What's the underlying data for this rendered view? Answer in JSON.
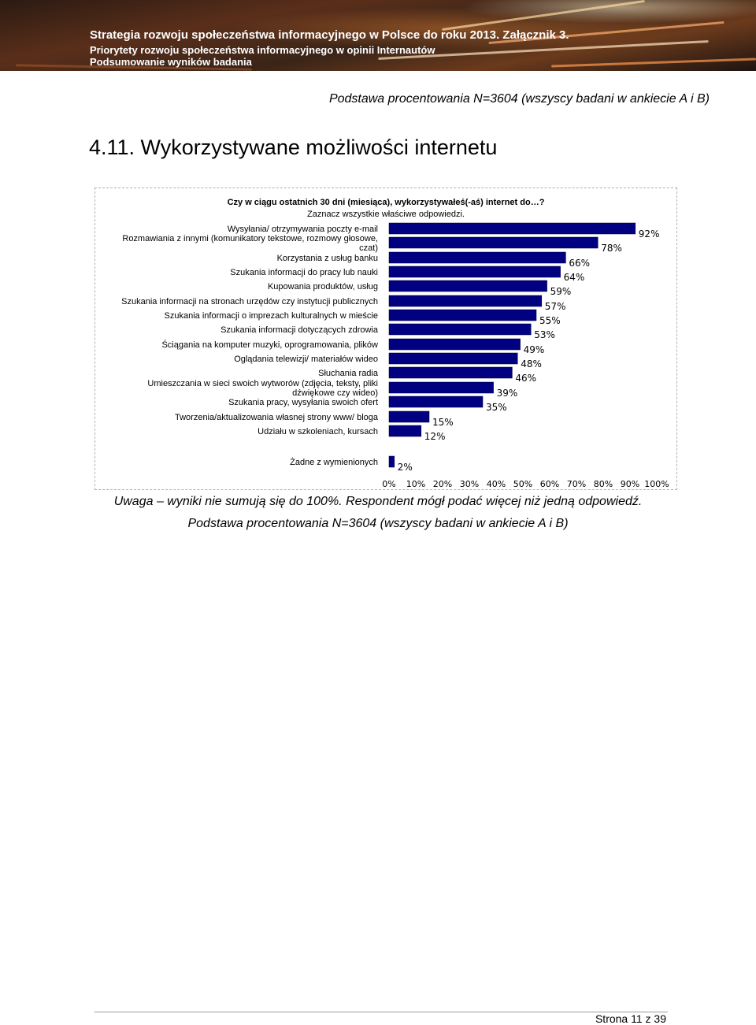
{
  "header": {
    "title": "Strategia rozwoju społeczeństwa informacyjnego w Polsce do roku 2013. Załącznik 3.",
    "subtitle1": "Priorytety rozwoju społeczeństwa informacyjnego w opinii Internautów",
    "subtitle2": "Podsumowanie wyników badania"
  },
  "basis_top": "Podstawa procentowania N=3604 (wszyscy badani w ankiecie A i B)",
  "section_title": "4.11.  Wykorzystywane możliwości internetu",
  "question": {
    "line1": "Czy w ciągu ostatnich 30 dni (miesiąca), wykorzystywałeś(-aś) internet do…?",
    "line2": "Zaznacz wszystkie właściwe odpowiedzi."
  },
  "chart_data": {
    "type": "bar",
    "orientation": "horizontal",
    "bar_color": "#000080",
    "categories": [
      [
        "Wysyłania/ otrzymywania poczty e-mail"
      ],
      [
        "Rozmawiania z innymi (komunikatory tekstowe, rozmowy głosowe,",
        "czat)"
      ],
      [
        "Korzystania z usług banku"
      ],
      [
        "Szukania informacji do pracy lub nauki"
      ],
      [
        "Kupowania produktów, usług"
      ],
      [
        "Szukania informacji na stronach urzędów czy instytucji publicznych"
      ],
      [
        "Szukania informacji o imprezach kulturalnych w mieście"
      ],
      [
        "Szukania informacji dotyczących zdrowia"
      ],
      [
        "Ściągania na komputer muzyki, oprogramowania, plików"
      ],
      [
        "Oglądania telewizji/ materiałów wideo"
      ],
      [
        "Słuchania radia"
      ],
      [
        "Umieszczania w sieci swoich wytworów (zdjęcia, teksty, pliki",
        "dźwiękowe czy wideo)"
      ],
      [
        "Szukania pracy, wysyłania swoich ofert"
      ],
      [
        "Tworzenia/aktualizowania własnej strony www/ bloga"
      ],
      [
        "Udziału w szkoleniach, kursach"
      ],
      [
        "Żadne z wymienionych"
      ]
    ],
    "values": [
      92,
      78,
      66,
      64,
      59,
      57,
      55,
      53,
      49,
      48,
      46,
      39,
      35,
      15,
      12,
      2
    ],
    "value_labels": [
      "92%",
      "78%",
      "66%",
      "64%",
      "59%",
      "57%",
      "55%",
      "53%",
      "49%",
      "48%",
      "46%",
      "39%",
      "35%",
      "15%",
      "12%",
      "2%"
    ],
    "xlim": [
      0,
      100
    ],
    "ticks": [
      0,
      10,
      20,
      30,
      40,
      50,
      60,
      70,
      80,
      90,
      100
    ],
    "tick_labels": [
      "0%",
      "10%",
      "20%",
      "30%",
      "40%",
      "50%",
      "60%",
      "70%",
      "80%",
      "90%",
      "100%"
    ],
    "grid": false,
    "legend": "none"
  },
  "note": "Uwaga – wyniki nie sumują się do 100%. Respondent mógł podać więcej niż jedną odpowiedź.",
  "basis_bottom": "Podstawa procentowania N=3604 (wszyscy badani w ankiecie A i B)",
  "footer": {
    "page": "Strona 11 z 39"
  }
}
